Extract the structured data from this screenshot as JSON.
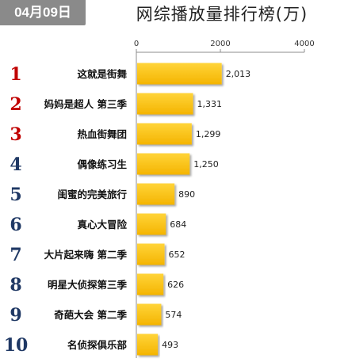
{
  "date_badge": "04月09日",
  "chart_data": {
    "type": "bar",
    "orientation": "horizontal",
    "title": "网综播放量排行榜(万)",
    "xlim": [
      0,
      4000
    ],
    "x_ticks": [
      0,
      2000,
      4000
    ],
    "grid": false,
    "colors": {
      "bar": "#FFC000",
      "rank_red": "#C00000",
      "rank_blue": "#1F3864"
    },
    "rows": [
      {
        "rank": "1",
        "name": "这就是街舞",
        "value": 2013,
        "value_label": "2,013",
        "rank_color": "red"
      },
      {
        "rank": "2",
        "name": "妈妈是超人 第三季",
        "value": 1331,
        "value_label": "1,331",
        "rank_color": "red"
      },
      {
        "rank": "3",
        "name": "热血街舞团",
        "value": 1299,
        "value_label": "1,299",
        "rank_color": "red"
      },
      {
        "rank": "4",
        "name": "偶像练习生",
        "value": 1250,
        "value_label": "1,250",
        "rank_color": "blue"
      },
      {
        "rank": "5",
        "name": "闺蜜的完美旅行",
        "value": 890,
        "value_label": "890",
        "rank_color": "blue"
      },
      {
        "rank": "6",
        "name": "真心大冒险",
        "value": 684,
        "value_label": "684",
        "rank_color": "blue"
      },
      {
        "rank": "7",
        "name": "大片起来嗨 第二季",
        "value": 652,
        "value_label": "652",
        "rank_color": "blue"
      },
      {
        "rank": "8",
        "name": "明星大侦探第三季",
        "value": 626,
        "value_label": "626",
        "rank_color": "blue"
      },
      {
        "rank": "9",
        "name": "奇葩大会 第二季",
        "value": 574,
        "value_label": "574",
        "rank_color": "blue"
      },
      {
        "rank": "10",
        "name": "名侦探俱乐部",
        "value": 493,
        "value_label": "493",
        "rank_color": "blue"
      }
    ]
  }
}
